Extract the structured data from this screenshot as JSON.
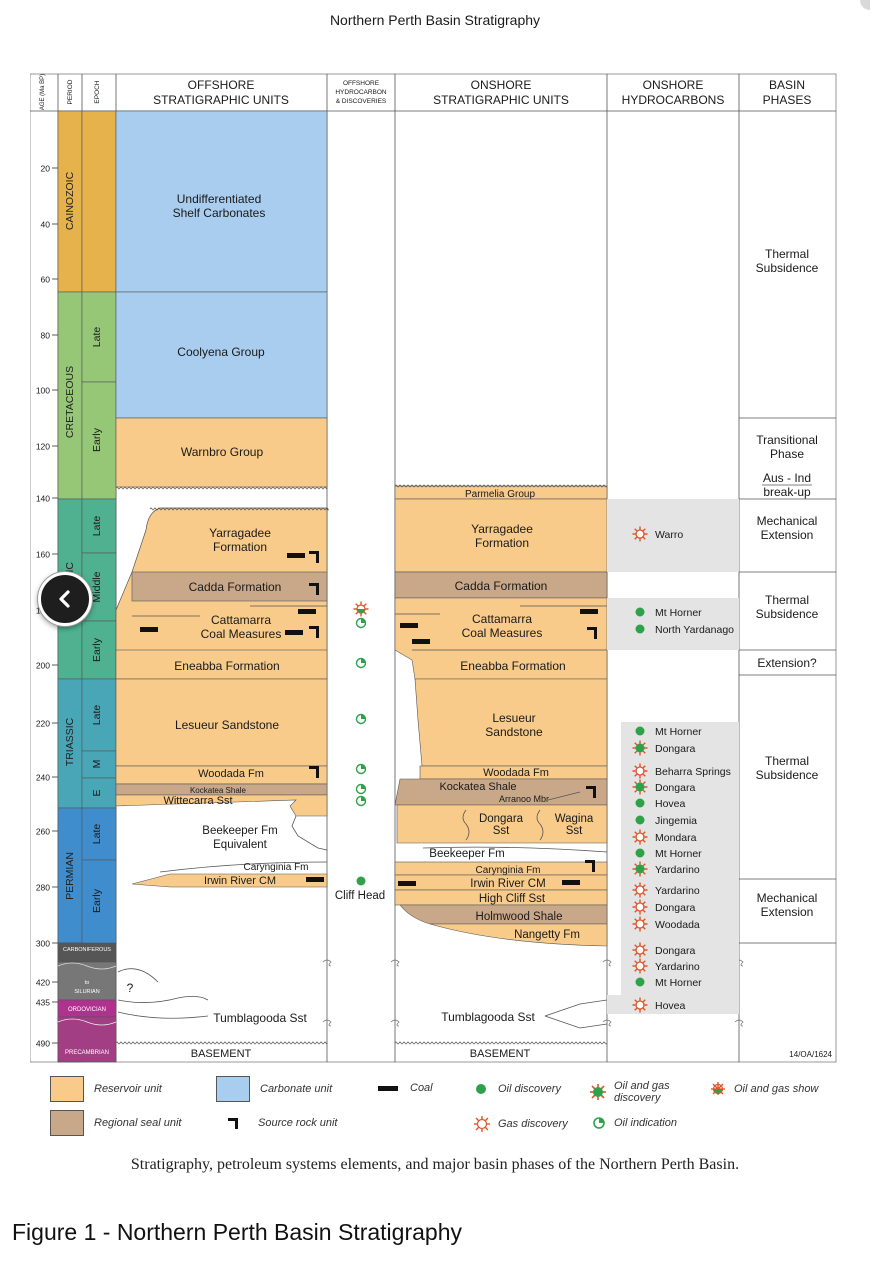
{
  "page": {
    "title": "Northern Perth Basin Stratigraphy",
    "caption": "Stratigraphy, petroleum systems elements, and major basin phases of the Northern Perth Basin.",
    "figure_title": "Figure 1 - Northern Perth Basin Stratigraphy",
    "back_icon": "chevron-left-icon"
  },
  "colors": {
    "reservoir": "#f8cb8a",
    "seal": "#c9a889",
    "carbonate": "#a9cdee",
    "cainozoic": "#e5b24c",
    "cretaceous": "#95c777",
    "jurassic": "#4fb190",
    "triassic": "#49a6b7",
    "permian": "#3f8dcc",
    "carboniferous": "#565656",
    "silurian": "#777777",
    "ordovician": "#b0328f",
    "precambrian": "#a23e83",
    "panel": "#e4e4e4",
    "oil": "#2ea24a",
    "gas": "#e0552a"
  },
  "header": {
    "age": "AGE (Ma BP)",
    "period": "PERIOD",
    "epoch": "EPOCH",
    "offshore_units": [
      "OFFSHORE",
      "STRATIGRAPHIC UNITS"
    ],
    "offshore_hc": [
      "OFFSHORE",
      "HYDROCARBON",
      "& DISCOVERIES"
    ],
    "onshore_units": [
      "ONSHORE",
      "STRATIGRAPHIC UNITS"
    ],
    "onshore_hc": [
      "ONSHORE",
      "HYDROCARBONS"
    ],
    "phases": [
      "BASIN",
      "PHASES"
    ]
  },
  "age_ticks": [
    "20",
    "40",
    "60",
    "80",
    "100",
    "120",
    "140",
    "160",
    "180",
    "200",
    "220",
    "240",
    "260",
    "280",
    "300",
    "420",
    "435",
    "490"
  ],
  "periods": [
    {
      "label": "CAINOZOIC",
      "color": "cainozoic"
    },
    {
      "label": "CRETACEOUS",
      "color": "cretaceous"
    },
    {
      "label": "JURASSIC",
      "color": "jurassic"
    },
    {
      "label": "TRIASSIC",
      "color": "triassic"
    },
    {
      "label": "PERMIAN",
      "color": "permian"
    },
    {
      "label": "CARBONIFEROUS",
      "color": "carboniferous"
    },
    {
      "label": "to SILURIAN",
      "color": "silurian"
    },
    {
      "label": "ORDOVICIAN",
      "color": "ordovician"
    },
    {
      "label": "PRECAMBRIAN",
      "color": "precambrian"
    }
  ],
  "epochs": [
    "Late",
    "Early",
    "Late",
    "Middle",
    "Early",
    "Late",
    "M",
    "E",
    "Late",
    "Early"
  ],
  "offshore_units": [
    {
      "name": "Undifferentiated Shelf Carbonates",
      "type": "carbonate"
    },
    {
      "name": "Coolyena Group",
      "type": "carbonate"
    },
    {
      "name": "Warnbro Group",
      "type": "reservoir"
    },
    {
      "name": "Yarragadee Formation",
      "type": "reservoir"
    },
    {
      "name": "Cadda Formation",
      "type": "seal"
    },
    {
      "name": "Cattamarra Coal Measures",
      "type": "reservoir"
    },
    {
      "name": "Eneabba Formation",
      "type": "reservoir"
    },
    {
      "name": "Lesueur Sandstone",
      "type": "reservoir"
    },
    {
      "name": "Woodada Fm",
      "type": "reservoir"
    },
    {
      "name": "Kockatea Shale",
      "type": "seal"
    },
    {
      "name": "Wittecarra Sst",
      "type": "reservoir"
    },
    {
      "name": "Beekeeper Fm Equivalent",
      "type": "none"
    },
    {
      "name": "Carynginia Fm",
      "type": "none"
    },
    {
      "name": "Irwin River CM",
      "type": "reservoir"
    },
    {
      "name": "Tumblagooda Sst",
      "type": "none"
    },
    {
      "name": "BASEMENT",
      "type": "none"
    }
  ],
  "offshore_discovery": "Cliff Head",
  "onshore_units": [
    {
      "name": "Parmelia Group",
      "type": "reservoir"
    },
    {
      "name": "Yarragadee Formation",
      "type": "reservoir"
    },
    {
      "name": "Cadda Formation",
      "type": "seal"
    },
    {
      "name": "Cattamarra Coal Measures",
      "type": "reservoir"
    },
    {
      "name": "Eneabba Formation",
      "type": "reservoir"
    },
    {
      "name": "Lesueur Sandstone",
      "type": "reservoir"
    },
    {
      "name": "Woodada Fm",
      "type": "reservoir"
    },
    {
      "name": "Kockatea Shale",
      "type": "seal"
    },
    {
      "name": "Arranoo Mbr",
      "type": "seal"
    },
    {
      "name": "Dongara Sst",
      "type": "reservoir"
    },
    {
      "name": "Wagina Sst",
      "type": "reservoir"
    },
    {
      "name": "Beekeeper Fm",
      "type": "none"
    },
    {
      "name": "Carynginia Fm",
      "type": "reservoir"
    },
    {
      "name": "Irwin River CM",
      "type": "reservoir"
    },
    {
      "name": "High Cliff Sst",
      "type": "reservoir"
    },
    {
      "name": "Holmwood Shale",
      "type": "seal"
    },
    {
      "name": "Nangetty Fm",
      "type": "reservoir"
    },
    {
      "name": "Tumblagooda Sst",
      "type": "none"
    },
    {
      "name": "BASEMENT",
      "type": "none"
    }
  ],
  "onshore_hydrocarbons": [
    {
      "name": "Warro",
      "kind": "gas"
    },
    {
      "name": "Mt Horner",
      "kind": "oil"
    },
    {
      "name": "North Yardanago",
      "kind": "oil"
    },
    {
      "name": "Mt Horner",
      "kind": "oil"
    },
    {
      "name": "Dongara",
      "kind": "oilgas"
    },
    {
      "name": "Beharra Springs",
      "kind": "gas"
    },
    {
      "name": "Dongara",
      "kind": "oilgas"
    },
    {
      "name": "Hovea",
      "kind": "oil"
    },
    {
      "name": "Jingemia",
      "kind": "oil"
    },
    {
      "name": "Mondara",
      "kind": "gas"
    },
    {
      "name": "Mt Horner",
      "kind": "oil"
    },
    {
      "name": "Yardarino",
      "kind": "oilgas"
    },
    {
      "name": "Yardarino",
      "kind": "gas"
    },
    {
      "name": "Dongara",
      "kind": "gas"
    },
    {
      "name": "Woodada",
      "kind": "gas"
    },
    {
      "name": "Dongara",
      "kind": "gas"
    },
    {
      "name": "Yardarino",
      "kind": "gas"
    },
    {
      "name": "Mt Horner",
      "kind": "oil"
    },
    {
      "name": "Hovea",
      "kind": "gas"
    }
  ],
  "basin_phases": [
    "Thermal Subsidence",
    "Transitional Phase",
    "Aus - Ind break-up",
    "Mechanical Extension",
    "Thermal Subsidence",
    "Extension?",
    "Thermal Subsidence",
    "Mechanical Extension"
  ],
  "chart_code": "14/OA/1624",
  "legend": {
    "reservoir": "Reservoir unit",
    "carbonate": "Carbonate unit",
    "coal": "Coal",
    "oil_discovery": "Oil discovery",
    "oil_gas_discovery": "Oil and gas discovery",
    "oil_gas_show": "Oil and gas show",
    "seal": "Regional seal unit",
    "source": "Source rock unit",
    "gas_discovery": "Gas discovery",
    "oil_indication": "Oil indication"
  }
}
